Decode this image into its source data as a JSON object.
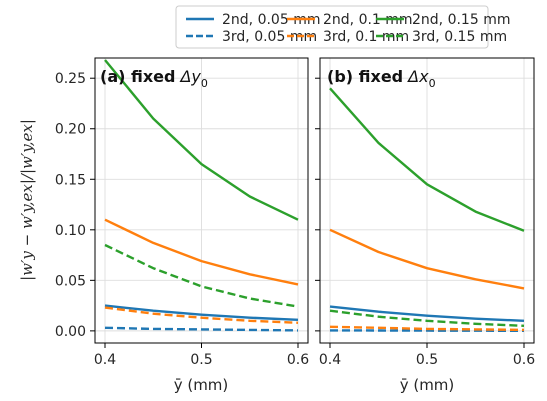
{
  "chart_data": {
    "type": "line",
    "xlabel": "ȳ (mm)",
    "ylabel": "|w′y − w′y,ex|/|w′y,ex|",
    "xlim": [
      0.4,
      0.6
    ],
    "ylim": [
      -0.012,
      0.27
    ],
    "xticks": [
      "0.4",
      "0.5",
      "0.6"
    ],
    "yticks": [
      "0.00",
      "0.05",
      "0.10",
      "0.15",
      "0.20",
      "0.25"
    ],
    "grid": true,
    "legend": {
      "placement": "top",
      "entries": [
        {
          "label": "2nd, 0.05 mm",
          "color": "#1f77b4",
          "style": "solid"
        },
        {
          "label": "2nd, 0.1 mm",
          "color": "#ff7f0e",
          "style": "solid"
        },
        {
          "label": "2nd, 0.15 mm",
          "color": "#2ca02c",
          "style": "solid"
        },
        {
          "label": "3rd, 0.05 mm",
          "color": "#1f77b4",
          "style": "dashed"
        },
        {
          "label": "3rd, 0.1 mm",
          "color": "#ff7f0e",
          "style": "dashed"
        },
        {
          "label": "3rd, 0.15 mm",
          "color": "#2ca02c",
          "style": "dashed"
        }
      ]
    },
    "panels": [
      {
        "id": "a",
        "title_bold": "(a) fixed",
        "title_math": "Δy",
        "title_sub": "0",
        "x": [
          0.4,
          0.45,
          0.5,
          0.55,
          0.6
        ],
        "series": [
          {
            "name": "2nd, 0.05 mm",
            "color": "#1f77b4",
            "style": "solid",
            "values": [
              0.025,
              0.02,
              0.016,
              0.013,
              0.011
            ]
          },
          {
            "name": "2nd, 0.1 mm",
            "color": "#ff7f0e",
            "style": "solid",
            "values": [
              0.11,
              0.087,
              0.069,
              0.056,
              0.046
            ]
          },
          {
            "name": "2nd, 0.15 mm",
            "color": "#2ca02c",
            "style": "solid",
            "values": [
              0.268,
              0.21,
              0.165,
              0.133,
              0.11
            ]
          },
          {
            "name": "3rd, 0.05 mm",
            "color": "#1f77b4",
            "style": "dashed",
            "values": [
              0.003,
              0.002,
              0.0015,
              0.001,
              0.0005
            ]
          },
          {
            "name": "3rd, 0.1 mm",
            "color": "#ff7f0e",
            "style": "dashed",
            "values": [
              0.023,
              0.017,
              0.013,
              0.01,
              0.008
            ]
          },
          {
            "name": "3rd, 0.15 mm",
            "color": "#2ca02c",
            "style": "dashed",
            "values": [
              0.085,
              0.062,
              0.044,
              0.032,
              0.024
            ]
          }
        ]
      },
      {
        "id": "b",
        "title_bold": "(b) fixed",
        "title_math": "Δx",
        "title_sub": "0",
        "x": [
          0.4,
          0.45,
          0.5,
          0.55,
          0.6
        ],
        "series": [
          {
            "name": "2nd, 0.05 mm",
            "color": "#1f77b4",
            "style": "solid",
            "values": [
              0.024,
              0.019,
              0.015,
              0.012,
              0.01
            ]
          },
          {
            "name": "2nd, 0.1 mm",
            "color": "#ff7f0e",
            "style": "solid",
            "values": [
              0.1,
              0.078,
              0.062,
              0.051,
              0.042
            ]
          },
          {
            "name": "2nd, 0.15 mm",
            "color": "#2ca02c",
            "style": "solid",
            "values": [
              0.24,
              0.186,
              0.145,
              0.118,
              0.099
            ]
          },
          {
            "name": "3rd, 0.05 mm",
            "color": "#1f77b4",
            "style": "dashed",
            "values": [
              0.0005,
              0.0004,
              0.0003,
              0.0002,
              0.0001
            ]
          },
          {
            "name": "3rd, 0.1 mm",
            "color": "#ff7f0e",
            "style": "dashed",
            "values": [
              0.004,
              0.003,
              0.002,
              0.0015,
              0.001
            ]
          },
          {
            "name": "3rd, 0.15 mm",
            "color": "#2ca02c",
            "style": "dashed",
            "values": [
              0.02,
              0.014,
              0.01,
              0.007,
              0.005
            ]
          }
        ]
      }
    ]
  }
}
